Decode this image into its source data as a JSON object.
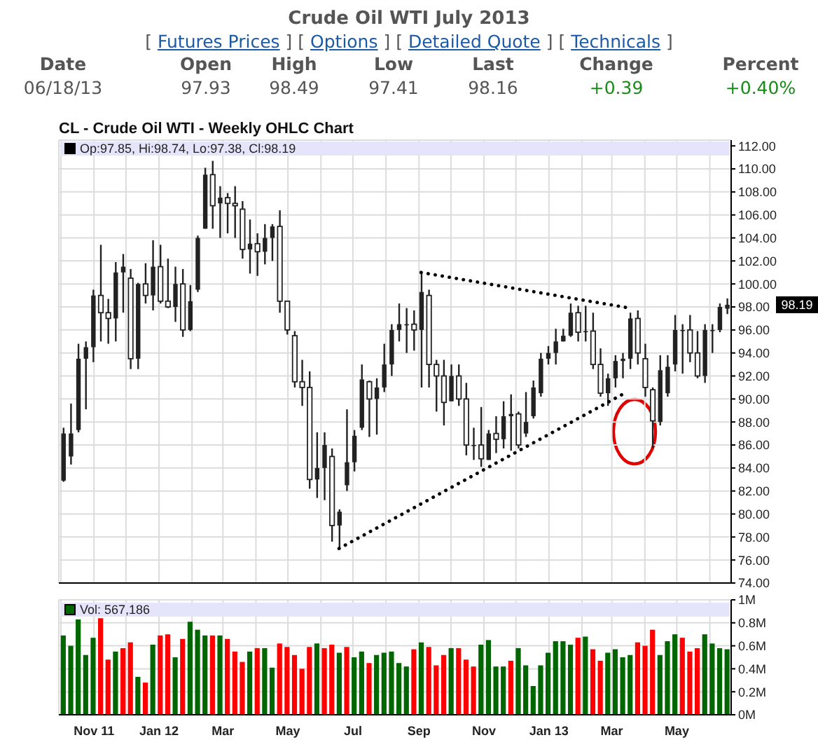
{
  "chart_data": [
    {
      "type": "other",
      "title": "Crude Oil WTI July 2013",
      "annotations": [
        "[ Futures Prices ]",
        "[ Options ]",
        "[ Detailed Quote ]",
        "[ Technicals ]"
      ],
      "categories": [
        "Date",
        "Open",
        "High",
        "Low",
        "Last",
        "Change",
        "Percent"
      ],
      "value_labels": [
        "06/18/13",
        "97.93",
        "98.49",
        "97.41",
        "98.16",
        "+0.39",
        "+0.40%"
      ],
      "colors": [
        "#555555",
        "#555555",
        "#555555",
        "#555555",
        "#555555",
        "#1a8a1a",
        "#1a8a1a"
      ]
    },
    {
      "type": "candlestick",
      "title": "CL - Crude Oil WTI - Weekly OHLC Chart",
      "color": "#222222",
      "x": [
        "2011-10-03",
        "2011-10-10",
        "2011-10-17",
        "2011-10-24",
        "2011-10-31",
        "2011-11-07",
        "2011-11-14",
        "2011-11-21",
        "2011-11-28",
        "2011-12-05",
        "2011-12-12",
        "2011-12-19",
        "2011-12-26",
        "2012-01-02",
        "2012-01-09",
        "2012-01-16",
        "2012-01-23",
        "2012-01-30",
        "2012-02-06",
        "2012-02-13",
        "2012-02-20",
        "2012-02-27",
        "2012-03-05",
        "2012-03-12",
        "2012-03-19",
        "2012-03-26",
        "2012-04-02",
        "2012-04-09",
        "2012-04-16",
        "2012-04-23",
        "2012-04-30",
        "2012-05-07",
        "2012-05-14",
        "2012-05-21",
        "2012-05-28",
        "2012-06-04",
        "2012-06-11",
        "2012-06-18",
        "2012-06-25",
        "2012-07-02",
        "2012-07-09",
        "2012-07-16",
        "2012-07-23",
        "2012-07-30",
        "2012-08-06",
        "2012-08-13",
        "2012-08-20",
        "2012-08-27",
        "2012-09-03",
        "2012-09-10",
        "2012-09-17",
        "2012-09-24",
        "2012-10-01",
        "2012-10-08",
        "2012-10-15",
        "2012-10-22",
        "2012-10-29",
        "2012-11-05",
        "2012-11-12",
        "2012-11-19",
        "2012-11-26",
        "2012-12-03",
        "2012-12-10",
        "2012-12-17",
        "2012-12-24",
        "2012-12-31",
        "2013-01-07",
        "2013-01-14",
        "2013-01-21",
        "2013-01-28",
        "2013-02-04",
        "2013-02-11",
        "2013-02-18",
        "2013-02-25",
        "2013-03-04",
        "2013-03-11",
        "2013-03-18",
        "2013-03-25",
        "2013-04-01",
        "2013-04-08",
        "2013-04-15",
        "2013-04-22",
        "2013-04-29",
        "2013-05-06",
        "2013-05-13",
        "2013-05-20",
        "2013-05-27",
        "2013-06-03",
        "2013-06-10",
        "2013-06-17"
      ],
      "ohlc": [
        [
          82.9,
          87.5,
          82.8,
          87.0
        ],
        [
          85.0,
          89.6,
          84.3,
          87.0
        ],
        [
          87.3,
          94.8,
          87.1,
          93.5
        ],
        [
          93.5,
          95.0,
          89.1,
          94.5
        ],
        [
          94.5,
          99.5,
          93.2,
          99.0
        ],
        [
          99.0,
          103.4,
          95.0,
          97.5
        ],
        [
          97.5,
          98.7,
          94.8,
          97.0
        ],
        [
          97.0,
          101.9,
          95.0,
          101.0
        ],
        [
          101.0,
          102.6,
          97.5,
          101.5
        ],
        [
          100.5,
          101.3,
          92.6,
          93.5
        ],
        [
          93.5,
          100.1,
          92.6,
          100.0
        ],
        [
          100.0,
          101.8,
          98.3,
          99.0
        ],
        [
          99.0,
          103.8,
          97.7,
          101.5
        ],
        [
          101.5,
          103.4,
          98.3,
          98.5
        ],
        [
          98.5,
          102.2,
          97.9,
          98.0
        ],
        [
          98.0,
          101.5,
          96.7,
          100.0
        ],
        [
          100.0,
          101.3,
          95.4,
          96.0
        ],
        [
          96.0,
          99.9,
          95.9,
          98.5
        ],
        [
          99.5,
          104.2,
          99.3,
          104.0
        ],
        [
          104.8,
          110.1,
          104.8,
          109.5
        ],
        [
          109.5,
          110.7,
          104.8,
          106.8
        ],
        [
          107.0,
          108.5,
          104.0,
          107.5
        ],
        [
          107.5,
          107.9,
          104.4,
          107.0
        ],
        [
          107.0,
          108.5,
          104.0,
          106.8
        ],
        [
          106.5,
          107.2,
          102.2,
          103.0
        ],
        [
          103.0,
          105.6,
          100.9,
          103.5
        ],
        [
          103.5,
          104.4,
          100.7,
          102.8
        ],
        [
          102.8,
          105.2,
          101.7,
          104.0
        ],
        [
          104.0,
          105.2,
          102.0,
          105.0
        ],
        [
          105.0,
          106.4,
          97.5,
          98.5
        ],
        [
          98.5,
          98.5,
          95.6,
          96.0
        ],
        [
          95.5,
          95.9,
          91.0,
          91.5
        ],
        [
          91.5,
          93.4,
          89.4,
          91.0
        ],
        [
          91.0,
          92.4,
          82.2,
          83.0
        ],
        [
          83.0,
          87.1,
          81.4,
          84.0
        ],
        [
          84.0,
          87.1,
          81.2,
          86.0
        ],
        [
          85.0,
          85.7,
          77.6,
          79.0
        ],
        [
          79.0,
          80.4,
          77.0,
          80.2
        ],
        [
          82.5,
          89.1,
          82.0,
          84.5
        ],
        [
          84.5,
          87.3,
          83.7,
          86.8
        ],
        [
          87.5,
          93.0,
          87.3,
          91.7
        ],
        [
          91.5,
          91.6,
          86.7,
          90.0
        ],
        [
          90.0,
          91.8,
          86.9,
          91.0
        ],
        [
          91.0,
          94.8,
          90.6,
          93.0
        ],
        [
          93.0,
          96.5,
          92.0,
          96.0
        ],
        [
          96.0,
          98.3,
          95.0,
          96.5
        ],
        [
          96.5,
          97.9,
          94.0,
          96.5
        ],
        [
          96.5,
          97.7,
          94.2,
          96.0
        ],
        [
          96.0,
          101.1,
          91.0,
          99.3
        ],
        [
          99.0,
          99.5,
          91.0,
          93.0
        ],
        [
          93.0,
          93.4,
          88.9,
          92.0
        ],
        [
          92.0,
          93.4,
          87.7,
          89.7
        ],
        [
          89.8,
          93.0,
          89.8,
          92.0
        ],
        [
          92.0,
          93.0,
          89.4,
          90.0
        ],
        [
          90.0,
          91.4,
          85.1,
          86.0
        ],
        [
          86.0,
          87.5,
          84.7,
          86.0
        ],
        [
          86.0,
          89.3,
          84.1,
          84.8
        ],
        [
          84.7,
          87.3,
          84.7,
          87.0
        ],
        [
          87.0,
          88.5,
          85.3,
          86.5
        ],
        [
          86.5,
          89.8,
          85.7,
          88.5
        ],
        [
          88.5,
          90.4,
          85.5,
          88.7
        ],
        [
          88.7,
          88.9,
          85.7,
          86.0
        ],
        [
          87.0,
          90.6,
          86.7,
          88.0
        ],
        [
          88.5,
          91.6,
          88.3,
          91.0
        ],
        [
          90.5,
          94.0,
          90.2,
          93.5
        ],
        [
          93.5,
          94.6,
          93.0,
          94.0
        ],
        [
          94.0,
          96.1,
          93.0,
          95.0
        ],
        [
          95.0,
          96.1,
          95.0,
          95.5
        ],
        [
          95.5,
          98.3,
          95.4,
          97.5
        ],
        [
          97.5,
          98.1,
          95.0,
          95.8
        ],
        [
          95.8,
          98.1,
          95.0,
          95.9
        ],
        [
          95.9,
          97.5,
          92.6,
          93.0
        ],
        [
          93.0,
          94.4,
          90.2,
          90.5
        ],
        [
          90.5,
          92.2,
          89.4,
          91.8
        ],
        [
          91.8,
          93.8,
          91.0,
          93.3
        ],
        [
          93.3,
          94.0,
          91.8,
          93.5
        ],
        [
          93.5,
          97.5,
          92.6,
          97.0
        ],
        [
          97.0,
          97.7,
          93.0,
          94.0
        ],
        [
          93.5,
          94.8,
          90.2,
          91.0
        ],
        [
          90.8,
          91.0,
          85.7,
          88.1
        ],
        [
          88.0,
          93.8,
          87.7,
          92.5
        ],
        [
          90.5,
          93.8,
          90.2,
          92.8
        ],
        [
          93.0,
          97.3,
          92.4,
          96.0
        ],
        [
          96.0,
          96.5,
          92.2,
          96.0
        ],
        [
          96.0,
          97.3,
          93.2,
          94.0
        ],
        [
          94.0,
          95.9,
          91.8,
          92.0
        ],
        [
          92.0,
          96.5,
          91.4,
          96.0
        ],
        [
          96.0,
          96.5,
          94.0,
          96.0
        ],
        [
          96.0,
          98.3,
          95.8,
          98.0
        ],
        [
          97.85,
          98.74,
          97.38,
          98.19
        ]
      ],
      "series": [
        {
          "type": "line",
          "x": [
            "2012-09-03",
            "2013-03-18"
          ],
          "values": [
            101.0,
            97.9
          ],
          "color": "#000000",
          "line_style": "dotted"
        },
        {
          "type": "line",
          "x": [
            "2012-06-18",
            "2013-03-11"
          ],
          "values": [
            77.0,
            90.4
          ],
          "color": "#000000",
          "line_style": "dotted"
        }
      ],
      "annotations": [
        "Op:97.85, Hi:98.74, Lo:97.38, Cl:98.19",
        "98.19"
      ],
      "xlim": [
        "2011-09-29",
        "2013-06-21"
      ],
      "xticks": [
        {
          "value": "2011-10-01",
          "label": null
        },
        {
          "value": "2011-11-01",
          "label": "Nov 11"
        },
        {
          "value": "2011-12-01",
          "label": null
        },
        {
          "value": "2012-01-01",
          "label": "Jan 12"
        },
        {
          "value": "2012-02-01",
          "label": null
        },
        {
          "value": "2012-03-01",
          "label": "Mar"
        },
        {
          "value": "2012-04-01",
          "label": null
        },
        {
          "value": "2012-05-01",
          "label": "May"
        },
        {
          "value": "2012-06-01",
          "label": null
        },
        {
          "value": "2012-07-01",
          "label": "Jul"
        },
        {
          "value": "2012-08-01",
          "label": null
        },
        {
          "value": "2012-09-01",
          "label": "Sep"
        },
        {
          "value": "2012-10-01",
          "label": null
        },
        {
          "value": "2012-11-01",
          "label": "Nov"
        },
        {
          "value": "2012-12-01",
          "label": null
        },
        {
          "value": "2013-01-01",
          "label": "Jan 13"
        },
        {
          "value": "2013-02-01",
          "label": null
        },
        {
          "value": "2013-03-01",
          "label": "Mar"
        },
        {
          "value": "2013-04-01",
          "label": null
        },
        {
          "value": "2013-05-01",
          "label": "May"
        },
        {
          "value": "2013-06-01",
          "label": null
        }
      ],
      "ylim": [
        74,
        112.5
      ],
      "yticks": [
        {
          "value": 74,
          "label": "74.00"
        },
        {
          "value": 76,
          "label": "76.00"
        },
        {
          "value": 78,
          "label": "78.00"
        },
        {
          "value": 80,
          "label": "80.00"
        },
        {
          "value": 82,
          "label": "82.00"
        },
        {
          "value": 84,
          "label": "84.00"
        },
        {
          "value": 86,
          "label": "86.00"
        },
        {
          "value": 88,
          "label": "88.00"
        },
        {
          "value": 90,
          "label": "90.00"
        },
        {
          "value": 92,
          "label": "92.00"
        },
        {
          "value": 94,
          "label": "94.00"
        },
        {
          "value": 96,
          "label": "96.00"
        },
        {
          "value": 98,
          "label": "98.00"
        },
        {
          "value": 100,
          "label": "100.00"
        },
        {
          "value": 102,
          "label": "102.00"
        },
        {
          "value": 104,
          "label": "104.00"
        },
        {
          "value": 106,
          "label": "106.00"
        },
        {
          "value": 108,
          "label": "108.00"
        },
        {
          "value": 110,
          "label": "110.00"
        },
        {
          "value": 112,
          "label": "112.00"
        }
      ],
      "grid": true,
      "tick_labels": "y"
    },
    {
      "type": "bar",
      "x": [
        "2011-10-03",
        "2011-10-10",
        "2011-10-17",
        "2011-10-24",
        "2011-10-31",
        "2011-11-07",
        "2011-11-14",
        "2011-11-21",
        "2011-11-28",
        "2011-12-05",
        "2011-12-12",
        "2011-12-19",
        "2011-12-26",
        "2012-01-02",
        "2012-01-09",
        "2012-01-16",
        "2012-01-23",
        "2012-01-30",
        "2012-02-06",
        "2012-02-13",
        "2012-02-20",
        "2012-02-27",
        "2012-03-05",
        "2012-03-12",
        "2012-03-19",
        "2012-03-26",
        "2012-04-02",
        "2012-04-09",
        "2012-04-16",
        "2012-04-23",
        "2012-04-30",
        "2012-05-07",
        "2012-05-14",
        "2012-05-21",
        "2012-05-28",
        "2012-06-04",
        "2012-06-11",
        "2012-06-18",
        "2012-06-25",
        "2012-07-02",
        "2012-07-09",
        "2012-07-16",
        "2012-07-23",
        "2012-07-30",
        "2012-08-06",
        "2012-08-13",
        "2012-08-20",
        "2012-08-27",
        "2012-09-03",
        "2012-09-10",
        "2012-09-17",
        "2012-09-24",
        "2012-10-01",
        "2012-10-08",
        "2012-10-15",
        "2012-10-22",
        "2012-10-29",
        "2012-11-05",
        "2012-11-12",
        "2012-11-19",
        "2012-11-26",
        "2012-12-03",
        "2012-12-10",
        "2012-12-17",
        "2012-12-24",
        "2012-12-31",
        "2013-01-07",
        "2013-01-14",
        "2013-01-21",
        "2013-01-28",
        "2013-02-04",
        "2013-02-11",
        "2013-02-18",
        "2013-02-25",
        "2013-03-04",
        "2013-03-11",
        "2013-03-18",
        "2013-03-25",
        "2013-04-01",
        "2013-04-08",
        "2013-04-15",
        "2013-04-22",
        "2013-04-29",
        "2013-05-06",
        "2013-05-13",
        "2013-05-20",
        "2013-05-27",
        "2013-06-03",
        "2013-06-10",
        "2013-06-17"
      ],
      "values": [
        0.69,
        0.6,
        0.83,
        0.52,
        0.67,
        0.84,
        0.48,
        0.55,
        0.58,
        0.63,
        0.33,
        0.28,
        0.61,
        0.69,
        0.7,
        0.5,
        0.66,
        0.81,
        0.74,
        0.69,
        0.69,
        0.69,
        0.66,
        0.55,
        0.46,
        0.55,
        0.58,
        0.58,
        0.41,
        0.62,
        0.59,
        0.52,
        0.4,
        0.59,
        0.62,
        0.58,
        0.61,
        0.54,
        0.59,
        0.5,
        0.55,
        0.45,
        0.52,
        0.54,
        0.55,
        0.45,
        0.42,
        0.57,
        0.63,
        0.59,
        0.43,
        0.52,
        0.58,
        0.58,
        0.48,
        0.42,
        0.61,
        0.65,
        0.42,
        0.42,
        0.47,
        0.58,
        0.43,
        0.25,
        0.43,
        0.54,
        0.64,
        0.64,
        0.61,
        0.67,
        0.68,
        0.57,
        0.47,
        0.54,
        0.57,
        0.5,
        0.52,
        0.63,
        0.6,
        0.74,
        0.52,
        0.64,
        0.7,
        0.67,
        0.55,
        0.58,
        0.7,
        0.62,
        0.58,
        0.57
      ],
      "colors": [
        "#006600",
        "#006600",
        "#006600",
        "#006600",
        "#006600",
        "#ff0000",
        "#ff0000",
        "#006600",
        "#ff0000",
        "#ff0000",
        "#006600",
        "#ff0000",
        "#006600",
        "#ff0000",
        "#ff0000",
        "#006600",
        "#ff0000",
        "#006600",
        "#006600",
        "#006600",
        "#ff0000",
        "#006600",
        "#ff0000",
        "#ff0000",
        "#ff0000",
        "#006600",
        "#ff0000",
        "#006600",
        "#006600",
        "#ff0000",
        "#ff0000",
        "#ff0000",
        "#ff0000",
        "#ff0000",
        "#006600",
        "#ff0000",
        "#ff0000",
        "#006600",
        "#ff0000",
        "#006600",
        "#006600",
        "#ff0000",
        "#006600",
        "#006600",
        "#006600",
        "#006600",
        "#006600",
        "#ff0000",
        "#006600",
        "#ff0000",
        "#ff0000",
        "#ff0000",
        "#006600",
        "#ff0000",
        "#ff0000",
        "#ff0000",
        "#006600",
        "#006600",
        "#006600",
        "#006600",
        "#ff0000",
        "#006600",
        "#006600",
        "#006600",
        "#006600",
        "#006600",
        "#006600",
        "#006600",
        "#006600",
        "#ff0000",
        "#006600",
        "#ff0000",
        "#ff0000",
        "#006600",
        "#006600",
        "#006600",
        "#006600",
        "#ff0000",
        "#ff0000",
        "#ff0000",
        "#006600",
        "#006600",
        "#006600",
        "#ff0000",
        "#ff0000",
        "#ff0000",
        "#006600",
        "#006600",
        "#006600",
        "#006600"
      ],
      "annotations": [
        "Vol: 567,186"
      ],
      "xlim": [
        "2011-09-29",
        "2013-06-21"
      ],
      "xticks": [
        {
          "value": "2011-10-01",
          "label": null
        },
        {
          "value": "2011-11-01",
          "label": "Nov 11"
        },
        {
          "value": "2011-12-01",
          "label": null
        },
        {
          "value": "2012-01-01",
          "label": "Jan 12"
        },
        {
          "value": "2012-02-01",
          "label": null
        },
        {
          "value": "2012-03-01",
          "label": "Mar"
        },
        {
          "value": "2012-04-01",
          "label": null
        },
        {
          "value": "2012-05-01",
          "label": "May"
        },
        {
          "value": "2012-06-01",
          "label": null
        },
        {
          "value": "2012-07-01",
          "label": "Jul"
        },
        {
          "value": "2012-08-01",
          "label": null
        },
        {
          "value": "2012-09-01",
          "label": "Sep"
        },
        {
          "value": "2012-10-01",
          "label": null
        },
        {
          "value": "2012-11-01",
          "label": "Nov"
        },
        {
          "value": "2012-12-01",
          "label": null
        },
        {
          "value": "2013-01-01",
          "label": "Jan 13"
        },
        {
          "value": "2013-02-01",
          "label": null
        },
        {
          "value": "2013-03-01",
          "label": "Mar"
        },
        {
          "value": "2013-04-01",
          "label": null
        },
        {
          "value": "2013-05-01",
          "label": "May"
        },
        {
          "value": "2013-06-01",
          "label": null
        }
      ],
      "ylim": [
        0,
        1
      ],
      "yticks": [
        {
          "value": 0,
          "label": "0M"
        },
        {
          "value": 0.2,
          "label": "0.2M"
        },
        {
          "value": 0.4,
          "label": "0.4M"
        },
        {
          "value": 0.6,
          "label": "0.6M"
        },
        {
          "value": 0.8,
          "label": "0.8M"
        },
        {
          "value": 1,
          "label": "1M"
        }
      ],
      "grid": true
    }
  ]
}
